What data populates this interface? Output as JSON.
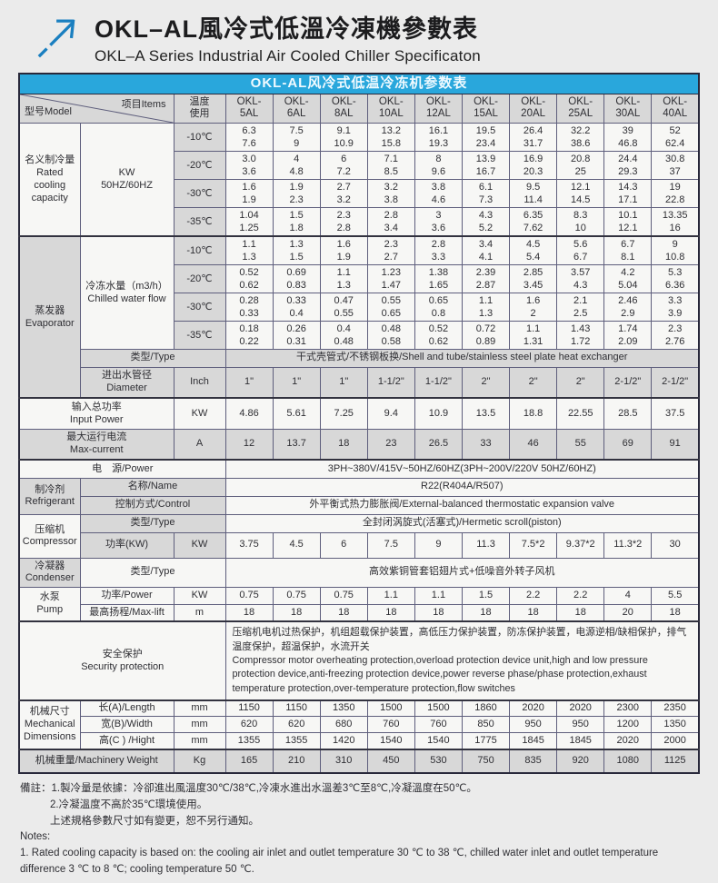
{
  "colors": {
    "accent_blue": "#29a7dc",
    "logo_blue": "#1a7fc0",
    "band_gray": "#d8d8d8"
  },
  "page": {
    "title_zh": "OKL–AL風冷式低溫冷凍機參數表",
    "title_en": "OKL–A Series Industrial Air Cooled Chiller Specificaton"
  },
  "table": {
    "title": "OKL-AL风冷式低温冷冻机参数表",
    "header": {
      "model_label": "型号Model",
      "items_label": "项目Items",
      "temp_use_label": "温度\n使用",
      "models": [
        "OKL-\n5AL",
        "OKL-\n6AL",
        "OKL-\n8AL",
        "OKL-\n10AL",
        "OKL-\n12AL",
        "OKL-\n15AL",
        "OKL-\n20AL",
        "OKL-\n25AL",
        "OKL-\n30AL",
        "OKL-\n40AL"
      ]
    },
    "rated": {
      "label": "名义制冷量\nRated\ncooling\ncapacity",
      "unit": "KW\n50HZ/60HZ",
      "rows": [
        {
          "temp": "-10℃",
          "values": [
            "6.3\n7.6",
            "7.5\n9",
            "9.1\n10.9",
            "13.2\n15.8",
            "16.1\n19.3",
            "19.5\n23.4",
            "26.4\n31.7",
            "32.2\n38.6",
            "39\n46.8",
            "52\n62.4"
          ]
        },
        {
          "temp": "-20℃",
          "values": [
            "3.0\n3.6",
            "4\n4.8",
            "6\n7.2",
            "7.1\n8.5",
            "8\n9.6",
            "13.9\n16.7",
            "16.9\n20.3",
            "20.8\n25",
            "24.4\n29.3",
            "30.8\n37"
          ]
        },
        {
          "temp": "-30℃",
          "values": [
            "1.6\n1.9",
            "1.9\n2.3",
            "2.7\n3.2",
            "3.2\n3.8",
            "3.8\n4.6",
            "6.1\n7.3",
            "9.5\n11.4",
            "12.1\n14.5",
            "14.3\n17.1",
            "19\n22.8"
          ]
        },
        {
          "temp": "-35℃",
          "values": [
            "1.04\n1.25",
            "1.5\n1.8",
            "2.3\n2.8",
            "2.8\n3.4",
            "3\n3.6",
            "4.3\n5.2",
            "6.35\n7.62",
            "8.3\n10",
            "10.1\n12.1",
            "13.35\n16"
          ]
        }
      ]
    },
    "evaporator": {
      "label": "蒸发器\nEvaporator",
      "flow_label": "冷冻水量（m3/h）\nChilled water flow",
      "flow_rows": [
        {
          "temp": "-10℃",
          "values": [
            "1.1\n1.3",
            "1.3\n1.5",
            "1.6\n1.9",
            "2.3\n2.7",
            "2.8\n3.3",
            "3.4\n4.1",
            "4.5\n5.4",
            "5.6\n6.7",
            "6.7\n8.1",
            "9\n10.8"
          ]
        },
        {
          "temp": "-20℃",
          "values": [
            "0.52\n0.62",
            "0.69\n0.83",
            "1.1\n1.3",
            "1.23\n1.47",
            "1.38\n1.65",
            "2.39\n2.87",
            "2.85\n3.45",
            "3.57\n4.3",
            "4.2\n5.04",
            "5.3\n6.36"
          ]
        },
        {
          "temp": "-30℃",
          "values": [
            "0.28\n0.33",
            "0.33\n0.4",
            "0.47\n0.55",
            "0.55\n0.65",
            "0.65\n0.8",
            "1.1\n1.3",
            "1.6\n2",
            "2.1\n2.5",
            "2.46\n2.9",
            "3.3\n3.9"
          ]
        },
        {
          "temp": "-35℃",
          "values": [
            "0.18\n0.22",
            "0.26\n0.31",
            "0.4\n0.48",
            "0.48\n0.58",
            "0.52\n0.62",
            "0.72\n0.89",
            "1.1\n1.31",
            "1.43\n1.72",
            "1.74\n2.09",
            "2.3\n2.76"
          ]
        }
      ],
      "type_label": "类型/Type",
      "type_value": "干式壳管式/不锈钢板换/Shell and tube/stainless steel plate heat exchanger",
      "diameter_label": "进出水管径\nDiameter",
      "diameter_unit": "Inch",
      "diameter_values": [
        "1\"",
        "1\"",
        "1\"",
        "1-1/2\"",
        "1-1/2\"",
        "2\"",
        "2\"",
        "2\"",
        "2-1/2\"",
        "2-1/2\""
      ]
    },
    "input_power": {
      "label": "输入总功率\nInput Power",
      "unit": "KW",
      "values": [
        "4.86",
        "5.61",
        "7.25",
        "9.4",
        "10.9",
        "13.5",
        "18.8",
        "22.55",
        "28.5",
        "37.5"
      ]
    },
    "max_current": {
      "label": "最大运行电流\nMax-current",
      "unit": "A",
      "values": [
        "12",
        "13.7",
        "18",
        "23",
        "26.5",
        "33",
        "46",
        "55",
        "69",
        "91"
      ]
    },
    "power": {
      "label": "电　源/Power",
      "value": "3PH~380V/415V~50HZ/60HZ(3PH~200V/220V 50HZ/60HZ)"
    },
    "refrigerant": {
      "label": "制冷剂\nRefrigerant",
      "name_label": "名称/Name",
      "name_value": "R22(R404A/R507)",
      "control_label": "控制方式/Control",
      "control_value": "外平衡式热力膨胀阀/External-balanced thermostatic expansion valve"
    },
    "compressor": {
      "label": "压缩机\nCompressor",
      "type_label": "类型/Type",
      "type_value": "全封闭涡旋式(活塞式)/Hermetic scroll(piston)",
      "power_label": "功率(KW)",
      "power_unit": "KW",
      "power_values": [
        "3.75",
        "4.5",
        "6",
        "7.5",
        "9",
        "11.3",
        "7.5*2",
        "9.37*2",
        "11.3*2",
        "30"
      ]
    },
    "condenser": {
      "label": "冷凝器\nCondenser",
      "type_label": "类型/Type",
      "type_value": "高效紫铜管套铝翅片式+低噪音外转子风机"
    },
    "pump": {
      "label": "水泵\nPump",
      "power_label": "功率/Power",
      "power_unit": "KW",
      "power_values": [
        "0.75",
        "0.75",
        "0.75",
        "1.1",
        "1.1",
        "1.5",
        "2.2",
        "2.2",
        "4",
        "5.5"
      ],
      "lift_label": "最高扬程/Max-lift",
      "lift_unit": "m",
      "lift_values": [
        "18",
        "18",
        "18",
        "18",
        "18",
        "18",
        "18",
        "18",
        "20",
        "18"
      ]
    },
    "security": {
      "label": "安全保护\nSecurity protection",
      "text": "压缩机电机过热保护，机组超载保护装置，高低压力保护装置，防冻保护装置，电源逆相/缺相保护，排气温度保护，超温保护，水流开关\nCompressor motor overheating protection,overload protection device unit,high and low pressure protection device,anti-freezing protection device,power reverse phase/phase protection,exhaust temperature protection,over-temperature protection,flow switches"
    },
    "mechanical": {
      "label": "机械尺寸\nMechanical\nDimensions",
      "rows": [
        {
          "label": "长(A)/Length",
          "unit": "mm",
          "values": [
            "1150",
            "1150",
            "1350",
            "1500",
            "1500",
            "1860",
            "2020",
            "2020",
            "2300",
            "2350"
          ]
        },
        {
          "label": "宽(B)/Width",
          "unit": "mm",
          "values": [
            "620",
            "620",
            "680",
            "760",
            "760",
            "850",
            "950",
            "950",
            "1200",
            "1350"
          ]
        },
        {
          "label": "高(C ) /Hight",
          "unit": "mm",
          "values": [
            "1355",
            "1355",
            "1420",
            "1540",
            "1540",
            "1775",
            "1845",
            "1845",
            "2020",
            "2000"
          ]
        }
      ]
    },
    "weight": {
      "label": "机械重量/Machinery Weight",
      "unit": "Kg",
      "values": [
        "165",
        "210",
        "310",
        "450",
        "530",
        "750",
        "835",
        "920",
        "1080",
        "1125"
      ]
    }
  },
  "notes": {
    "zh1": "備註：1.製冷量是依據：冷卻進出風溫度30℃/38℃,冷凍水進出水溫差3℃至8℃,冷凝溫度在50℃。",
    "zh2": "2.冷凝溫度不高於35℃環境使用。",
    "zh3": "上述規格參數尺寸如有變更，恕不另行通知。",
    "en_head": "Notes:",
    "en1": "1. Rated cooling capacity is based on: the cooling air inlet and outlet temperature 30 ℃ to 38 ℃, chilled water inlet and outlet temperature difference 3 ℃ to 8 ℃; cooling temperature 50 ℃."
  }
}
